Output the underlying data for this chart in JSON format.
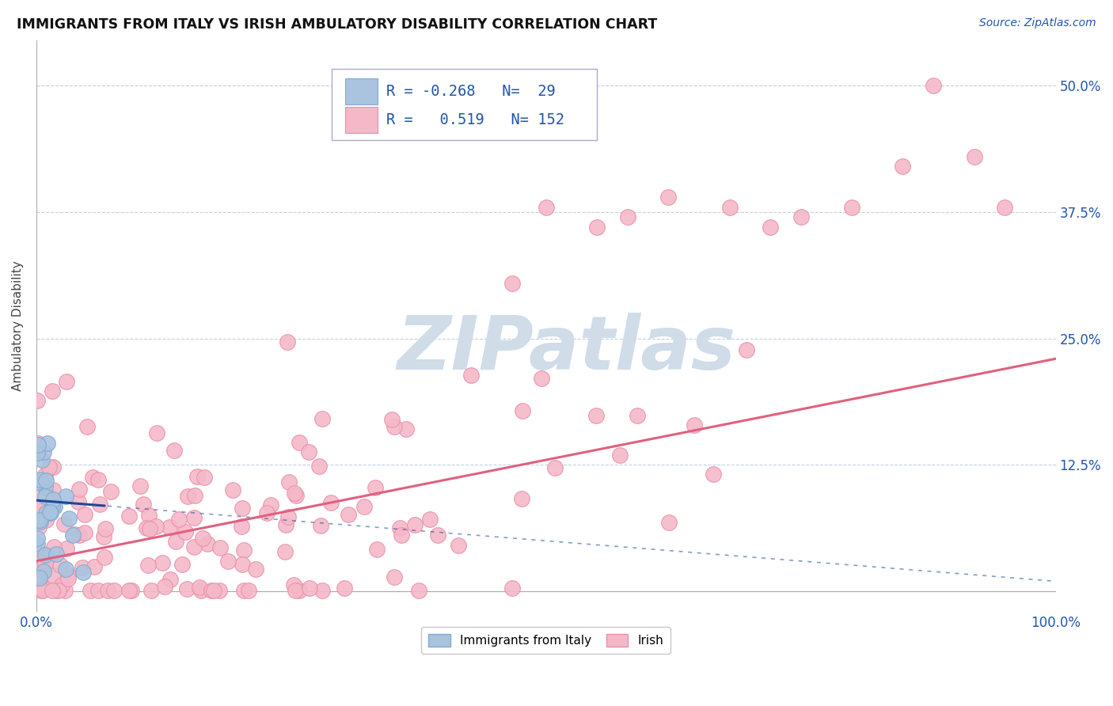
{
  "title": "IMMIGRANTS FROM ITALY VS IRISH AMBULATORY DISABILITY CORRELATION CHART",
  "source_text": "Source: ZipAtlas.com",
  "ylabel": "Ambulatory Disability",
  "xlim": [
    0.0,
    1.0
  ],
  "ylim": [
    -0.02,
    0.545
  ],
  "yticks": [
    0.0,
    0.125,
    0.25,
    0.375,
    0.5
  ],
  "legend_R1": "-0.268",
  "legend_N1": "29",
  "legend_R2": "0.519",
  "legend_N2": "152",
  "series1_color": "#aac4e0",
  "series1_edge": "#80aad0",
  "series2_color": "#f5b8c8",
  "series2_edge": "#e890aa",
  "trend1_color": "#1a4a99",
  "trend2_color": "#e06080",
  "watermark_color": "#d0dce8",
  "background_color": "#ffffff",
  "grid_color": "#c0d0e0",
  "trend1_intercept": 0.09,
  "trend1_slope": -0.08,
  "trend2_intercept": 0.03,
  "trend2_slope": 0.2
}
